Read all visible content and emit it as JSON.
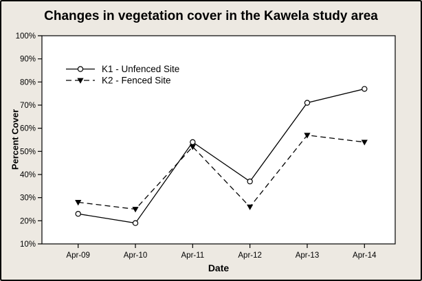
{
  "chart_data": {
    "type": "line",
    "title": "Changes in vegetation cover in the Kawela study area",
    "xlabel": "Date",
    "ylabel": "Percent Cover",
    "categories": [
      "Apr-09",
      "Apr-10",
      "Apr-11",
      "Apr-12",
      "Apr-13",
      "Apr-14"
    ],
    "series": [
      {
        "name": "K1 - Unfenced Site",
        "values": [
          23,
          19,
          54,
          37,
          71,
          77
        ],
        "line": "solid",
        "marker": "open-circle",
        "color": "#000000"
      },
      {
        "name": "K2 - Fenced Site",
        "values": [
          28,
          25,
          52,
          26,
          57,
          54
        ],
        "line": "dashed",
        "marker": "filled-triangle-down",
        "color": "#000000"
      }
    ],
    "ylim": [
      10,
      100
    ],
    "ytick_values": [
      10,
      20,
      30,
      40,
      50,
      60,
      70,
      80,
      90,
      100
    ],
    "ytick_labels": [
      "10%",
      "20%",
      "30%",
      "40%",
      "50%",
      "60%",
      "70%",
      "80%",
      "90%",
      "100%"
    ],
    "grid": false,
    "legend_position": "top-left-inside",
    "background_color": "#EDE9E2",
    "plot_background_color": "#FFFFFF",
    "axis_color": "#000000"
  }
}
